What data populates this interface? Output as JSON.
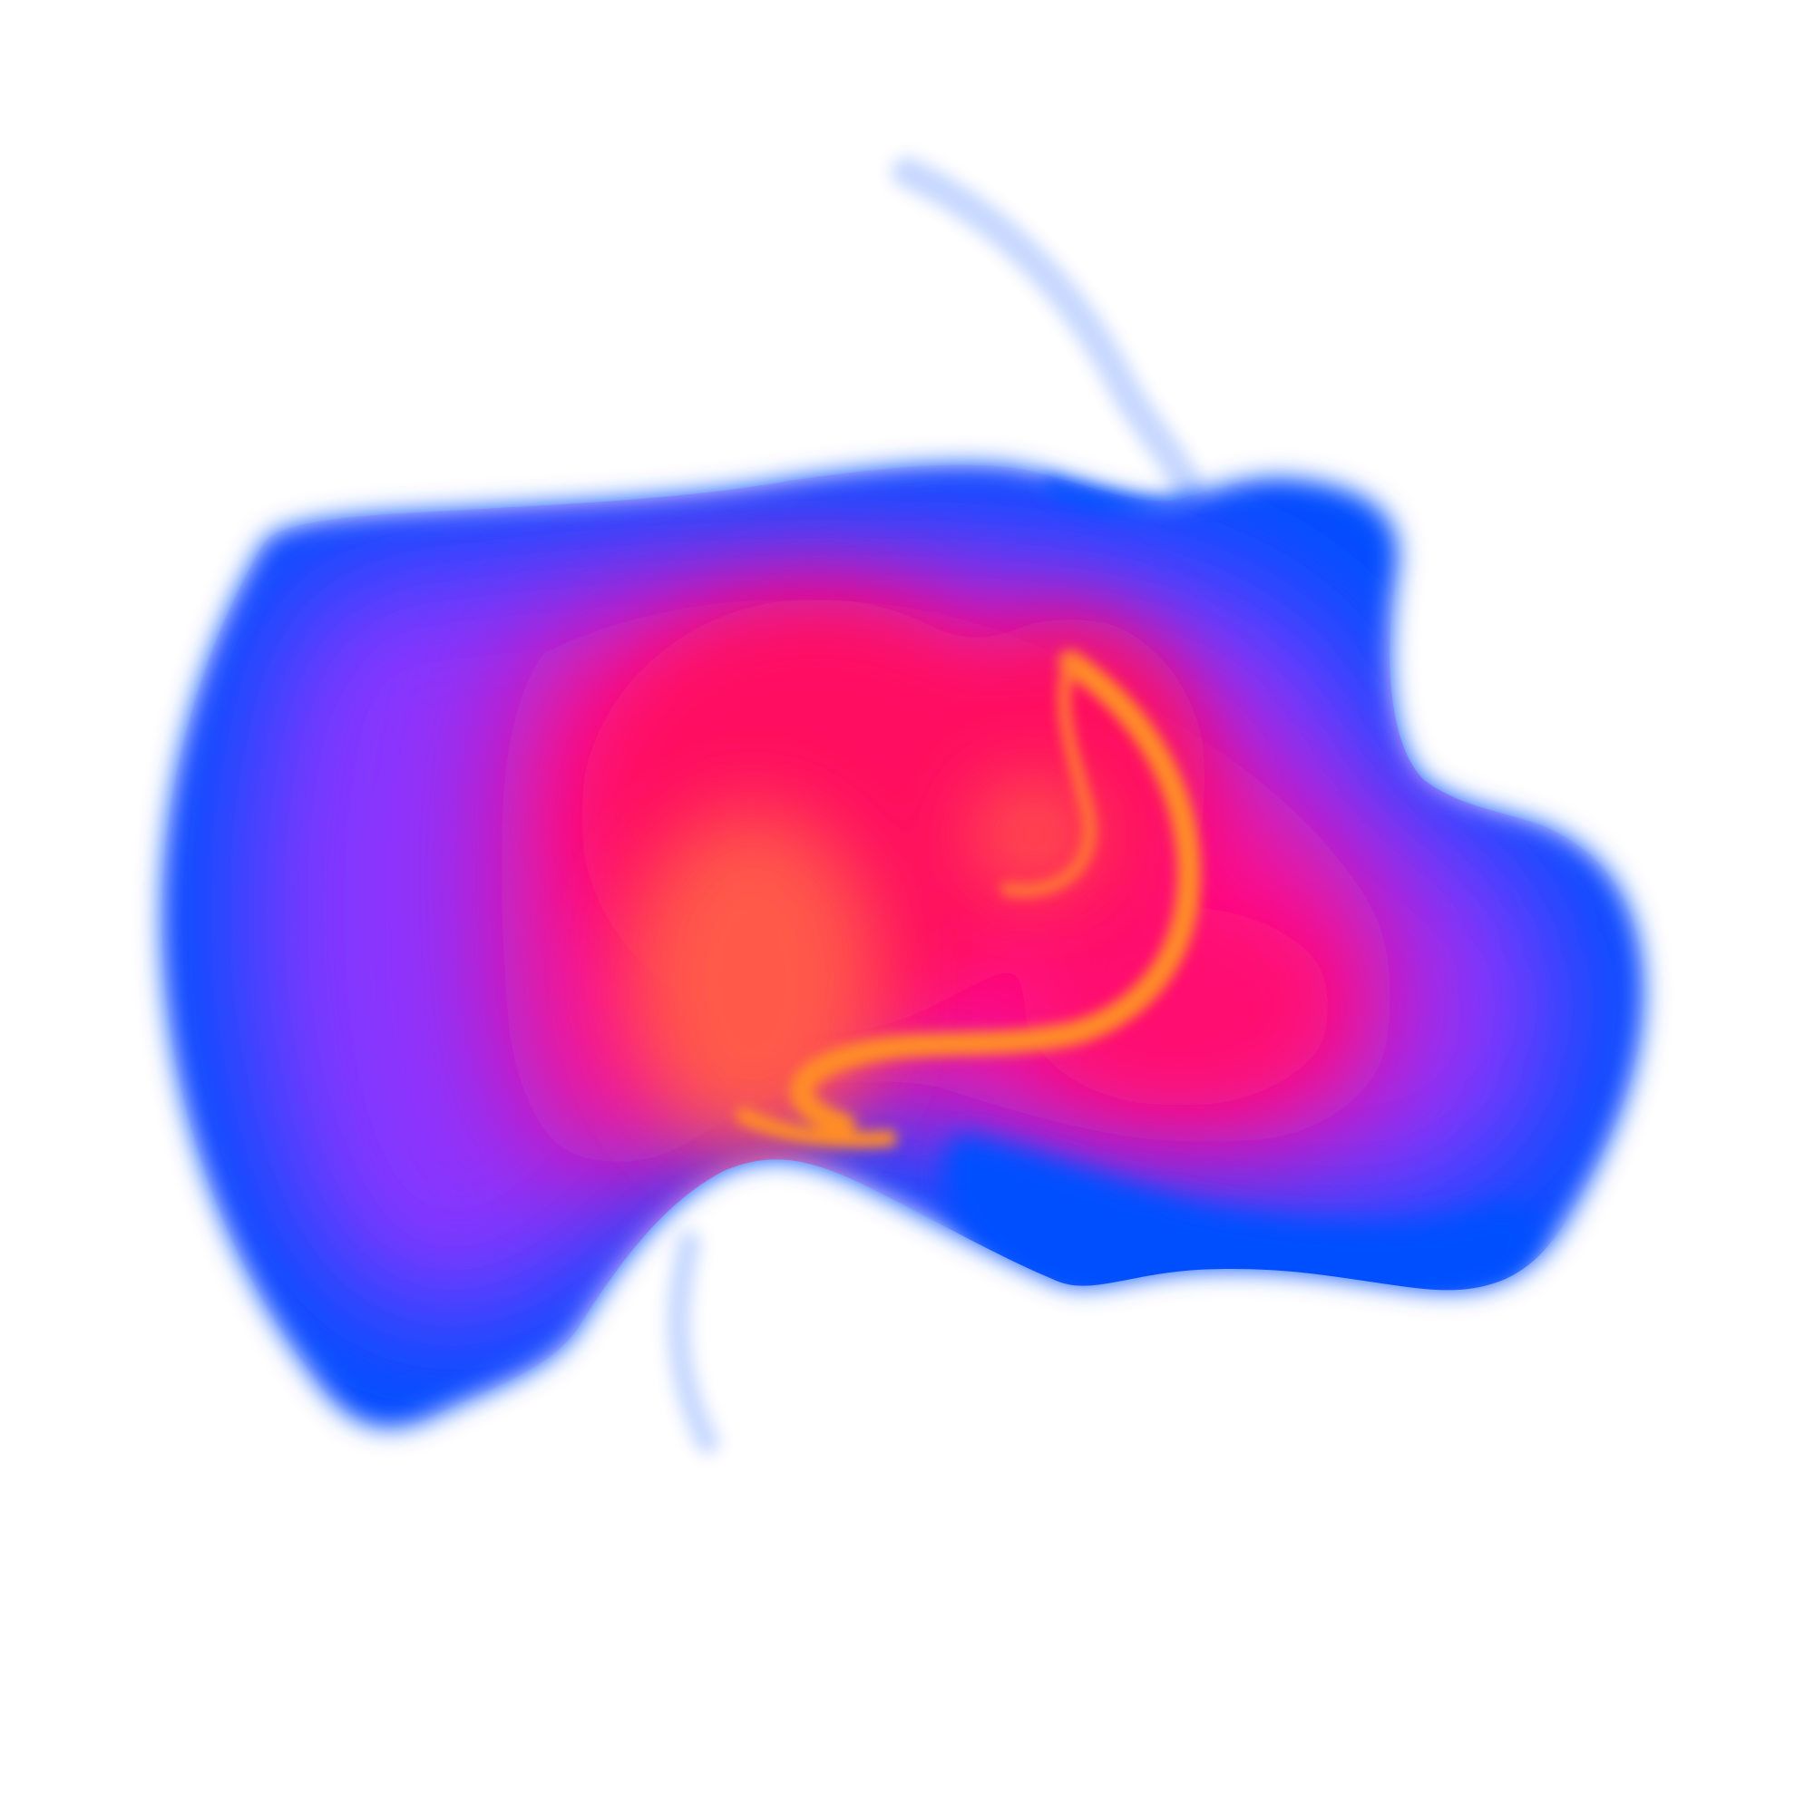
{
  "image": {
    "kind": "abstract fluid color blob",
    "background": "#ffffff",
    "palette": {
      "edge_blue": "#0050ff",
      "violet": "#8a35ff",
      "magenta": "#ff0a8c",
      "hot_pink": "#ff1060",
      "coral": "#ff5a4a",
      "orange": "#ff8c28"
    },
    "regions": [
      {
        "name": "outer-blue-rim",
        "color": "edge_blue"
      },
      {
        "name": "violet-band",
        "color": "violet"
      },
      {
        "name": "magenta-core",
        "color": "magenta"
      },
      {
        "name": "pink-core",
        "color": "hot_pink"
      },
      {
        "name": "coral-center",
        "color": "coral"
      },
      {
        "name": "orange-swirl",
        "color": "orange"
      },
      {
        "name": "lower-right-blue-lobe",
        "color": "edge_blue"
      },
      {
        "name": "wispy-trails",
        "color": "edge_blue"
      }
    ]
  }
}
